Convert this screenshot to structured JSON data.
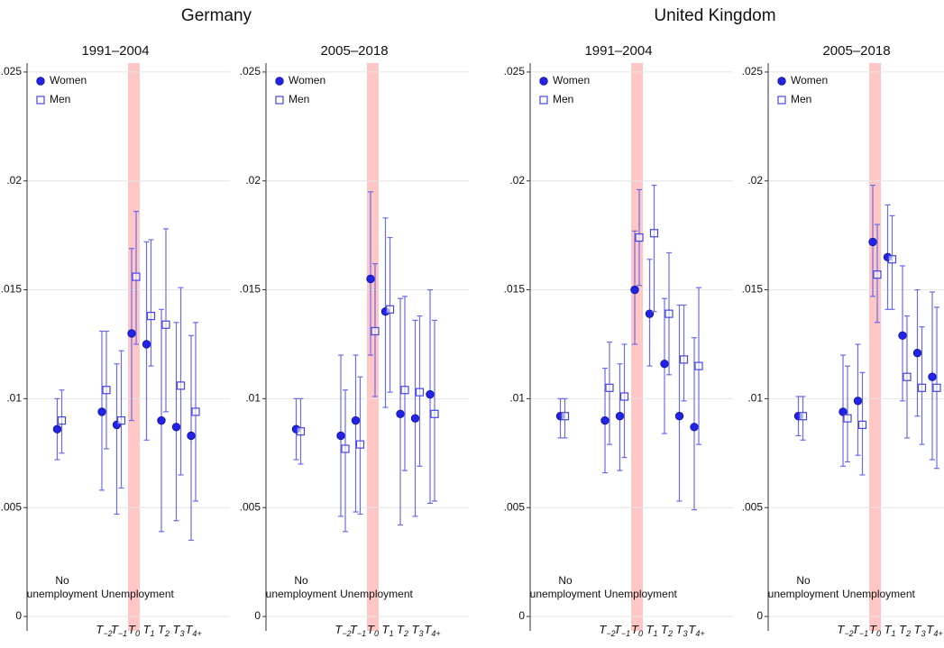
{
  "titles": [
    "Germany",
    "United Kingdom"
  ],
  "chart_data": [
    {
      "type": "errorbar",
      "title": "1991–2004",
      "categories": [
        null,
        "T−2",
        "T−1",
        "T0",
        "T1",
        "T2",
        "T3",
        "T4+"
      ],
      "series": [
        {
          "name": "Women",
          "color": "#2323e6",
          "marker": "circle",
          "values": [
            0.0086,
            0.0094,
            0.0088,
            0.013,
            0.0125,
            0.009,
            0.0087,
            0.0083
          ],
          "lower": [
            0.0072,
            0.0058,
            0.0047,
            0.009,
            0.0081,
            0.0039,
            0.0044,
            0.0035
          ],
          "upper": [
            0.01,
            0.0131,
            0.0116,
            0.0169,
            0.0172,
            0.0141,
            0.0135,
            0.0129
          ]
        },
        {
          "name": "Men",
          "color": "#4545e6",
          "marker": "square",
          "values": [
            0.009,
            0.0104,
            0.009,
            0.0156,
            0.0138,
            0.0134,
            0.0106,
            0.0094
          ],
          "lower": [
            0.0075,
            0.0077,
            0.0059,
            0.0125,
            0.0115,
            0.0094,
            0.0065,
            0.0053
          ],
          "upper": [
            0.0104,
            0.0131,
            0.0122,
            0.0186,
            0.0173,
            0.0178,
            0.0151,
            0.0135
          ]
        }
      ],
      "ylim": [
        -0.00066,
        0.02541
      ],
      "yticks": [
        0,
        {
          "value": 0.005,
          "label": ".005"
        },
        {
          "value": 0.01,
          "label": ".01"
        },
        {
          "value": 0.015,
          "label": ".015"
        },
        {
          "value": 0.02,
          "label": ".02"
        },
        {
          "value": 0.025,
          "label": ".025"
        }
      ],
      "grid": true,
      "highlight": "T0",
      "annotations": [
        [
          "No",
          "unemployment"
        ],
        [
          "Unemployment"
        ]
      ]
    },
    {
      "type": "errorbar",
      "title": "2005–2018",
      "categories": [
        null,
        "T−2",
        "T−1",
        "T0",
        "T1",
        "T2",
        "T3",
        "T4+"
      ],
      "series": [
        {
          "name": "Women",
          "color": "#2323e6",
          "marker": "circle",
          "values": [
            0.0086,
            0.0083,
            0.009,
            0.0155,
            0.014,
            0.0093,
            0.0091,
            0.0102
          ],
          "lower": [
            0.0072,
            0.0046,
            0.0048,
            0.012,
            0.0096,
            0.0042,
            0.0046,
            0.0052
          ],
          "upper": [
            0.01,
            0.012,
            0.012,
            0.0195,
            0.0183,
            0.0146,
            0.0136,
            0.015
          ]
        },
        {
          "name": "Men",
          "color": "#4545e6",
          "marker": "square",
          "values": [
            0.0085,
            0.0077,
            0.0079,
            0.0131,
            0.0141,
            0.0104,
            0.0103,
            0.0093
          ],
          "lower": [
            0.007,
            0.0039,
            0.0047,
            0.0101,
            0.0103,
            0.0067,
            0.0069,
            0.0053
          ],
          "upper": [
            0.01,
            0.0104,
            0.011,
            0.0162,
            0.0174,
            0.0147,
            0.0138,
            0.0136
          ]
        }
      ],
      "ylim": [
        -0.00066,
        0.02541
      ],
      "yticks": [
        0,
        {
          "value": 0.005,
          "label": ".005"
        },
        {
          "value": 0.01,
          "label": ".01"
        },
        {
          "value": 0.015,
          "label": ".015"
        },
        {
          "value": 0.02,
          "label": ".02"
        },
        {
          "value": 0.025,
          "label": ".025"
        }
      ],
      "grid": true,
      "highlight": "T0",
      "annotations": [
        [
          "No",
          "unemployment"
        ],
        [
          "Unemployment"
        ]
      ]
    },
    {
      "type": "errorbar",
      "title": "1991–2004",
      "categories": [
        null,
        "T−2",
        "T−1",
        "T0",
        "T1",
        "T2",
        "T3",
        "T4+"
      ],
      "series": [
        {
          "name": "Women",
          "color": "#2323e6",
          "marker": "circle",
          "values": [
            0.0092,
            0.009,
            0.0092,
            0.015,
            0.0139,
            0.0116,
            0.0092,
            0.0087
          ],
          "lower": [
            0.0082,
            0.0066,
            0.0067,
            0.0125,
            0.0115,
            0.0084,
            0.0053,
            0.0049
          ],
          "upper": [
            0.01,
            0.0114,
            0.0116,
            0.0177,
            0.0164,
            0.0146,
            0.0143,
            0.0128
          ]
        },
        {
          "name": "Men",
          "color": "#4545e6",
          "marker": "square",
          "values": [
            0.0092,
            0.0105,
            0.0101,
            0.0174,
            0.0176,
            0.0139,
            0.0118,
            0.0115
          ],
          "lower": [
            0.0082,
            0.0079,
            0.0073,
            0.0152,
            0.014,
            0.0111,
            0.0099,
            0.0079
          ],
          "upper": [
            0.01,
            0.0126,
            0.0125,
            0.0196,
            0.0198,
            0.0167,
            0.0143,
            0.0151
          ]
        }
      ],
      "ylim": [
        -0.00066,
        0.02541
      ],
      "yticks": [
        0,
        {
          "value": 0.005,
          "label": ".005"
        },
        {
          "value": 0.01,
          "label": ".01"
        },
        {
          "value": 0.015,
          "label": ".015"
        },
        {
          "value": 0.02,
          "label": ".02"
        },
        {
          "value": 0.025,
          "label": ".025"
        }
      ],
      "grid": true,
      "highlight": "T0",
      "annotations": [
        [
          "No",
          "unemployment"
        ],
        [
          "Unemployment"
        ]
      ]
    },
    {
      "type": "errorbar",
      "title": "2005–2018",
      "categories": [
        null,
        "T−2",
        "T−1",
        "T0",
        "T1",
        "T2",
        "T3",
        "T4+"
      ],
      "series": [
        {
          "name": "Women",
          "color": "#2323e6",
          "marker": "circle",
          "values": [
            0.0092,
            0.0094,
            0.0099,
            0.0172,
            0.0165,
            0.0129,
            0.0121,
            0.011
          ],
          "lower": [
            0.0083,
            0.0069,
            0.0074,
            0.0147,
            0.0141,
            0.0099,
            0.0092,
            0.0072
          ],
          "upper": [
            0.0101,
            0.012,
            0.0125,
            0.0198,
            0.0189,
            0.0161,
            0.015,
            0.0149
          ]
        },
        {
          "name": "Men",
          "color": "#4545e6",
          "marker": "square",
          "values": [
            0.0092,
            0.0091,
            0.0088,
            0.0157,
            0.0164,
            0.011,
            0.0105,
            0.0105
          ],
          "lower": [
            0.0081,
            0.0071,
            0.0065,
            0.0135,
            0.0141,
            0.0082,
            0.0079,
            0.0068
          ],
          "upper": [
            0.0101,
            0.0115,
            0.0112,
            0.018,
            0.0184,
            0.0138,
            0.0133,
            0.0142
          ]
        }
      ],
      "ylim": [
        -0.00066,
        0.02541
      ],
      "yticks": [
        0,
        {
          "value": 0.005,
          "label": ".005"
        },
        {
          "value": 0.01,
          "label": ".01"
        },
        {
          "value": 0.015,
          "label": ".015"
        },
        {
          "value": 0.02,
          "label": ".02"
        },
        {
          "value": 0.025,
          "label": ".025"
        }
      ],
      "grid": true,
      "highlight": "T0",
      "annotations": [
        [
          "No",
          "unemployment"
        ],
        [
          "Unemployment"
        ]
      ]
    }
  ]
}
